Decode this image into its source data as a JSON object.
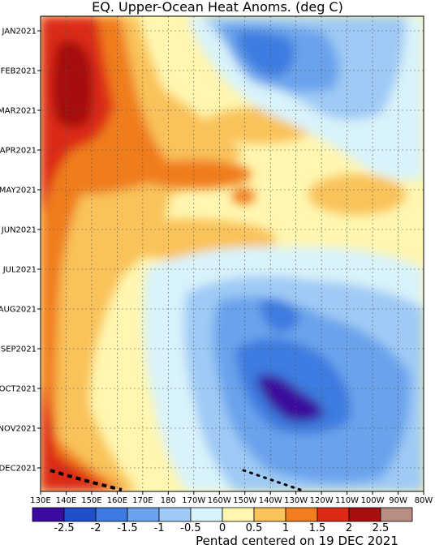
{
  "chart_data": {
    "type": "heatmap",
    "title": "EQ. Upper-Ocean Heat Anoms. (deg C)",
    "footer": "Pentad centered on 19 DEC 2021",
    "y_ticks": [
      "JAN2021",
      "FEB2021",
      "MAR2021",
      "APR2021",
      "MAY2021",
      "JUN2021",
      "JUL2021",
      "AUG2021",
      "SEP2021",
      "OCT2021",
      "NOV2021",
      "DEC2021"
    ],
    "x_ticks": [
      "130E",
      "140E",
      "150E",
      "160E",
      "170E",
      "180",
      "170W",
      "160W",
      "150W",
      "140W",
      "130W",
      "120W",
      "110W",
      "100W",
      "90W",
      "80W"
    ],
    "colorbar": {
      "labels": [
        "-2.5",
        "-2",
        "-1.5",
        "-1",
        "-0.5",
        "0",
        "0.5",
        "1",
        "1.5",
        "2",
        "2.5"
      ],
      "colors": [
        "#3b0a9e",
        "#1f4fc9",
        "#3d7be0",
        "#6aa3ec",
        "#9fcaf5",
        "#d9f3fa",
        "#fff6b0",
        "#f9c25a",
        "#f07d1f",
        "#dc2a17",
        "#a60e10",
        "#b88e82"
      ]
    },
    "x_range": [
      "130E",
      "80W"
    ],
    "y_range": [
      "JAN2021",
      "DEC2021"
    ],
    "grid": true,
    "anomaly_features": [
      {
        "region": "130E-160E, JAN-MAR",
        "value": 2.0
      },
      {
        "region": "135E-150E, FEB-MAR",
        "value": 2.5
      },
      {
        "region": "150W-120W, OCT",
        "value": -2.5
      },
      {
        "region": "140W-110W, DEC",
        "value": -1.0
      },
      {
        "region": "150W-120W, JAN",
        "value": -1.5
      },
      {
        "region": "130E-160E, DEC",
        "value": 2.0
      }
    ]
  }
}
